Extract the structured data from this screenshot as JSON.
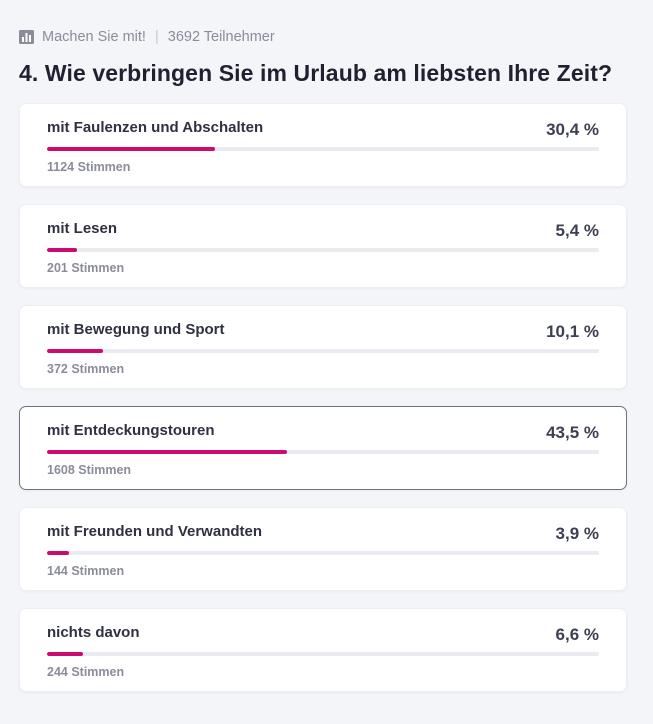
{
  "header": {
    "kicker": "Machen Sie mit!",
    "participants": "3692 Teilnehmer",
    "separator": "|",
    "icon": "bar-chart-icon"
  },
  "poll": {
    "question": "4. Wie verbringen Sie im Urlaub am liebsten Ihre Zeit?",
    "accent_color": "#cc0a70",
    "options": [
      {
        "label": "mit Faulenzen und Abschalten",
        "percent_text": "30,4 %",
        "share": 0.304,
        "votes": "1124 Stimmen",
        "selected": false
      },
      {
        "label": "mit Lesen",
        "percent_text": "5,4 %",
        "share": 0.054,
        "votes": "201 Stimmen",
        "selected": false
      },
      {
        "label": "mit Bewegung und Sport",
        "percent_text": "10,1 %",
        "share": 0.101,
        "votes": "372 Stimmen",
        "selected": false
      },
      {
        "label": "mit Entdeckungstouren",
        "percent_text": "43,5 %",
        "share": 0.435,
        "votes": "1608 Stimmen",
        "selected": true
      },
      {
        "label": "mit Freunden und Verwandten",
        "percent_text": "3,9 %",
        "share": 0.039,
        "votes": "144 Stimmen",
        "selected": false
      },
      {
        "label": "nichts davon",
        "percent_text": "6,6 %",
        "share": 0.066,
        "votes": "244 Stimmen",
        "selected": false
      }
    ]
  }
}
